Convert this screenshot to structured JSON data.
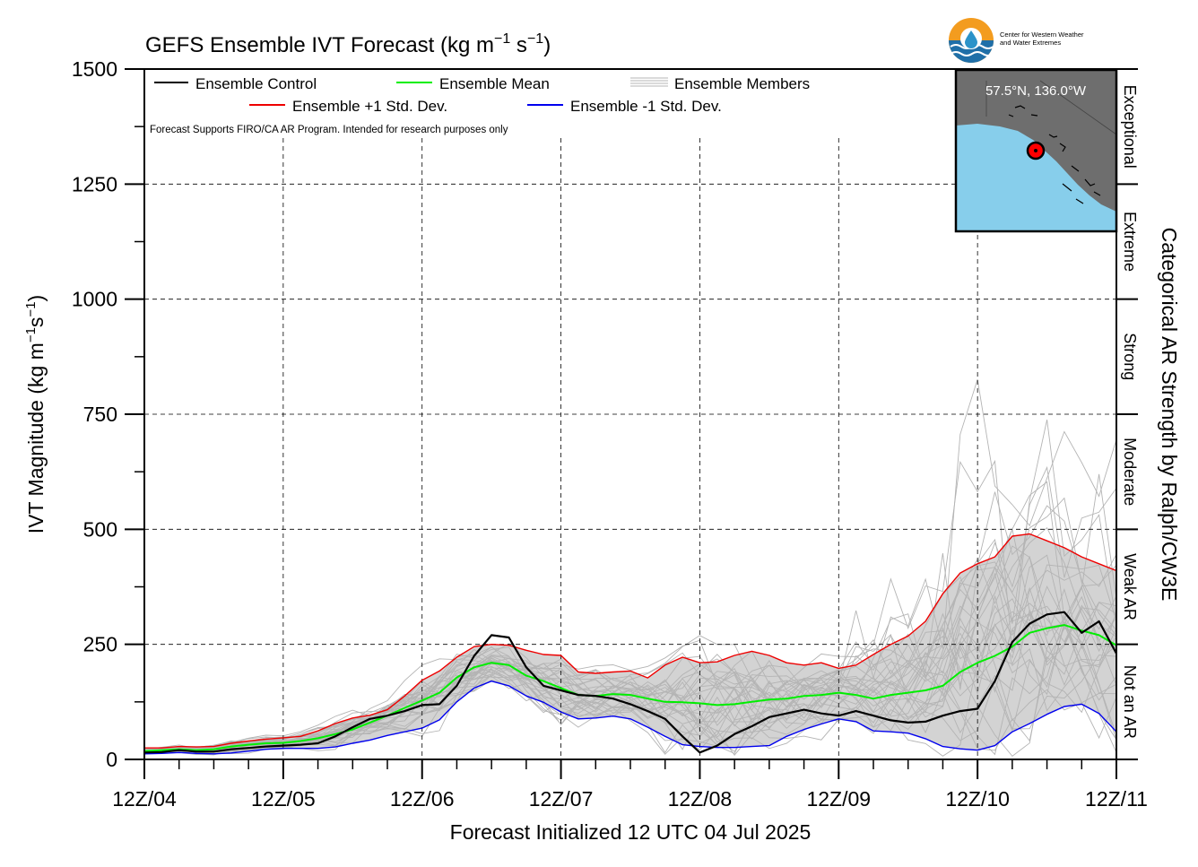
{
  "chart_data": {
    "type": "line",
    "title_main": "GEFS Ensemble IVT Forecast (kg m",
    "title_sup1": "−1",
    "title_mid": " s",
    "title_sup2": "−1",
    "title_end": ")",
    "xlabel": "Forecast Initialized 12 UTC 04 Jul 2025",
    "ylabel_main": "IVT Magnitude (kg m",
    "ylabel_sup1": "−1",
    "ylabel_mid": "s",
    "ylabel_sup2": "−1",
    "ylabel_end": ")",
    "right_label": "Categorical AR Strength by Ralph/CW3E",
    "note": "Forecast Supports FIRO/CA AR Program. Intended for research purposes only",
    "ylim": [
      0,
      1500
    ],
    "xlim": [
      0,
      168
    ],
    "y_ticks": [
      0,
      250,
      500,
      750,
      1000,
      1250,
      1500
    ],
    "y_tick_labels": [
      "0",
      "250",
      "500",
      "750",
      "1000",
      "1250",
      "1500"
    ],
    "x_ticks": [
      0,
      24,
      48,
      72,
      96,
      120,
      144,
      168
    ],
    "x_tick_labels": [
      "12Z/04",
      "12Z/05",
      "12Z/06",
      "12Z/07",
      "12Z/08",
      "12Z/09",
      "12Z/10",
      "12Z/11"
    ],
    "categories": [
      {
        "label": "Not an AR",
        "from": 0,
        "to": 250
      },
      {
        "label": "Weak AR",
        "from": 250,
        "to": 500
      },
      {
        "label": "Moderate",
        "from": 500,
        "to": 750
      },
      {
        "label": "Strong",
        "from": 750,
        "to": 1000
      },
      {
        "label": "Extreme",
        "from": 1000,
        "to": 1250
      },
      {
        "label": "Exceptional",
        "from": 1250,
        "to": 1500
      }
    ],
    "legend": {
      "control": "Ensemble Control",
      "mean": "Ensemble Mean",
      "members": "Ensemble Members",
      "plus": "Ensemble +1 Std. Dev.",
      "minus": "Ensemble -1 Std. Dev."
    },
    "legend_placement": "top-left",
    "grid": true,
    "colors": {
      "control": "#000000",
      "mean": "#00ee00",
      "plus": "#ee0000",
      "minus": "#0000ee",
      "members": "#b4b4b4",
      "spread": "#d3d3d3",
      "map_ocean": "#87ceeb",
      "map_land": "#6e6e6e",
      "marker": "#ff0000"
    },
    "x": [
      0,
      3,
      6,
      9,
      12,
      15,
      18,
      21,
      24,
      27,
      30,
      33,
      36,
      39,
      42,
      45,
      48,
      51,
      54,
      57,
      60,
      63,
      66,
      69,
      72,
      75,
      78,
      81,
      84,
      87,
      90,
      93,
      96,
      99,
      102,
      105,
      108,
      111,
      114,
      117,
      120,
      123,
      126,
      129,
      132,
      135,
      138,
      141,
      144,
      147,
      150,
      153,
      156,
      159,
      162,
      165,
      168
    ],
    "series": [
      {
        "name": "Ensemble +1 Std. Dev.",
        "key": "plus",
        "values": [
          25,
          25,
          28,
          27,
          28,
          35,
          40,
          44,
          47,
          50,
          62,
          78,
          90,
          96,
          108,
          138,
          172,
          192,
          222,
          245,
          250,
          248,
          237,
          228,
          226,
          190,
          187,
          190,
          192,
          177,
          205,
          222,
          210,
          212,
          226,
          235,
          226,
          210,
          205,
          210,
          198,
          205,
          228,
          250,
          268,
          300,
          360,
          405,
          425,
          440,
          485,
          490,
          475,
          460,
          440,
          425,
          410
        ]
      },
      {
        "name": "Ensemble Mean",
        "key": "mean",
        "values": [
          18,
          20,
          22,
          20,
          22,
          28,
          32,
          35,
          36,
          40,
          46,
          55,
          65,
          80,
          95,
          112,
          128,
          145,
          178,
          200,
          210,
          205,
          182,
          170,
          155,
          140,
          138,
          142,
          140,
          132,
          125,
          124,
          122,
          118,
          120,
          125,
          130,
          132,
          138,
          140,
          145,
          140,
          132,
          140,
          145,
          150,
          160,
          190,
          210,
          225,
          245,
          275,
          285,
          292,
          280,
          270,
          248
        ]
      },
      {
        "name": "Ensemble -1 Std. Dev.",
        "key": "minus",
        "values": [
          12,
          13,
          15,
          13,
          12,
          14,
          18,
          22,
          24,
          24,
          24,
          27,
          35,
          42,
          52,
          60,
          68,
          86,
          125,
          155,
          170,
          160,
          138,
          124,
          103,
          88,
          90,
          94,
          88,
          70,
          50,
          32,
          28,
          26,
          26,
          28,
          30,
          50,
          65,
          77,
          88,
          82,
          62,
          60,
          57,
          45,
          28,
          23,
          20,
          30,
          60,
          78,
          98,
          115,
          120,
          100,
          60
        ]
      },
      {
        "name": "Ensemble Control",
        "key": "control",
        "values": [
          15,
          16,
          20,
          17,
          17,
          22,
          25,
          28,
          30,
          32,
          35,
          50,
          70,
          88,
          95,
          105,
          118,
          120,
          160,
          225,
          270,
          265,
          200,
          160,
          150,
          140,
          138,
          132,
          120,
          105,
          88,
          50,
          15,
          30,
          55,
          72,
          92,
          100,
          108,
          100,
          95,
          105,
          95,
          85,
          80,
          82,
          95,
          105,
          110,
          170,
          255,
          295,
          315,
          320,
          275,
          300,
          230
        ]
      }
    ],
    "member_count": 31,
    "inset": {
      "label": "57.5°N, 136.0°W",
      "marker_lat": 57.5,
      "marker_lon": -136.0
    },
    "logo": {
      "text_line1": "Center for Western Weather",
      "text_line2": "and Water Extremes"
    }
  }
}
